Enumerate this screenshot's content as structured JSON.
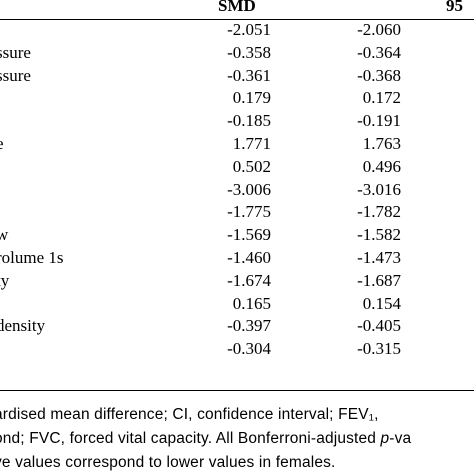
{
  "header": {
    "smd": "SMD",
    "ci": "95"
  },
  "rows": [
    {
      "label": "",
      "smd": "-2.051",
      "ci": "-2.060"
    },
    {
      "label": "ssure",
      "smd": "-0.358",
      "ci": "-0.364"
    },
    {
      "label": "ssure",
      "smd": "-0.361",
      "ci": "-0.368"
    },
    {
      "label": "",
      "smd": "0.179",
      "ci": "0.172"
    },
    {
      "label": "",
      "smd": "-0.185",
      "ci": "-0.191"
    },
    {
      "label": "e",
      "smd": "1.771",
      "ci": "1.763"
    },
    {
      "label": "",
      "smd": "0.502",
      "ci": "0.496"
    },
    {
      "label": "",
      "smd": "-3.006",
      "ci": "-3.016"
    },
    {
      "label": "",
      "smd": "-1.775",
      "ci": "-1.782"
    },
    {
      "label": "w",
      "smd": "-1.569",
      "ci": "-1.582"
    },
    {
      "label": "rolume 1s",
      "smd": "-1.460",
      "ci": "-1.473"
    },
    {
      "label": "ty",
      "smd": "-1.674",
      "ci": "-1.687"
    },
    {
      "label": "",
      "smd": "0.165",
      "ci": "0.154"
    },
    {
      "label": "density",
      "smd": "-0.397",
      "ci": "-0.405"
    },
    {
      "label": "",
      "smd": "-0.304",
      "ci": "-0.315"
    }
  ],
  "footnote": {
    "line1": "ardised mean difference; CI, confidence interval; FEV₁,",
    "line2": "ond; FVC, forced vital capacity. All Bonferroni-adjusted p-va",
    "line3": "ve values correspond to lower values in females."
  }
}
